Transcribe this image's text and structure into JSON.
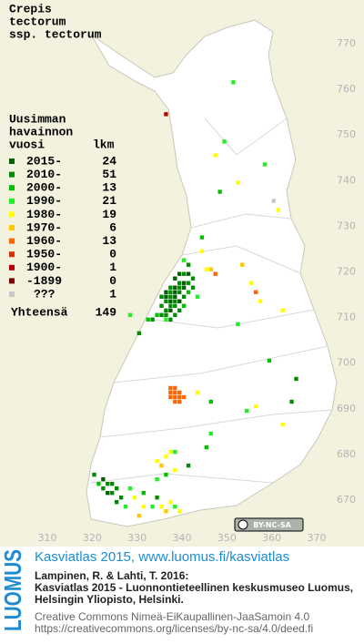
{
  "title_lines": [
    "Crepis",
    "tectorum",
    "ssp. tectorum"
  ],
  "legend": {
    "header": [
      "Uusimman",
      "havainnon"
    ],
    "col_year": "vuosi",
    "col_count": "lkm",
    "rows": [
      {
        "label": "2015-",
        "count": 24,
        "color": "#006000"
      },
      {
        "label": "2010-",
        "count": 51,
        "color": "#008c00"
      },
      {
        "label": "2000-",
        "count": 13,
        "color": "#00c000"
      },
      {
        "label": "1990-",
        "count": 21,
        "color": "#22ee22"
      },
      {
        "label": "1980-",
        "count": 19,
        "color": "#ffff00"
      },
      {
        "label": "1970-",
        "count": 6,
        "color": "#ffc800"
      },
      {
        "label": "1960-",
        "count": 13,
        "color": "#ff6400"
      },
      {
        "label": "1950-",
        "count": 0,
        "color": "#e03000"
      },
      {
        "label": "1900-",
        "count": 1,
        "color": "#b40000"
      },
      {
        "label": "-1899",
        "count": 0,
        "color": "#800000"
      },
      {
        "label": "???",
        "count": 1,
        "color": "#c8c8c8"
      }
    ],
    "total_label": "Yhteensä",
    "total": 149
  },
  "map": {
    "xlim": [
      310,
      370
    ],
    "ylim": [
      670,
      770
    ],
    "xticks": [
      310,
      320,
      330,
      340,
      350,
      360,
      370
    ],
    "yticks": [
      670,
      680,
      690,
      700,
      710,
      720,
      730,
      740,
      750,
      760,
      770
    ],
    "cells": [
      [
        351,
        761,
        3
      ],
      [
        336,
        754,
        8
      ],
      [
        349,
        748,
        3
      ],
      [
        347,
        745,
        4
      ],
      [
        358,
        743,
        3
      ],
      [
        352,
        739,
        4
      ],
      [
        348,
        737,
        2
      ],
      [
        360,
        735,
        10
      ],
      [
        361,
        733,
        4
      ],
      [
        344,
        727,
        2
      ],
      [
        344,
        724,
        4
      ],
      [
        346,
        720,
        5
      ],
      [
        347,
        719,
        6
      ],
      [
        345,
        720,
        4
      ],
      [
        353,
        721,
        5
      ],
      [
        355,
        717,
        4
      ],
      [
        356,
        715,
        6
      ],
      [
        357,
        713,
        4
      ],
      [
        362,
        711,
        4
      ],
      [
        340,
        722,
        3
      ],
      [
        341,
        721,
        1
      ],
      [
        339,
        719,
        0
      ],
      [
        340,
        719,
        1
      ],
      [
        341,
        719,
        0
      ],
      [
        342,
        718,
        1
      ],
      [
        338,
        718,
        0
      ],
      [
        339,
        717,
        1
      ],
      [
        340,
        717,
        0
      ],
      [
        341,
        717,
        1
      ],
      [
        337,
        716,
        1
      ],
      [
        338,
        716,
        0
      ],
      [
        339,
        716,
        1
      ],
      [
        340,
        716,
        0
      ],
      [
        342,
        716,
        1
      ],
      [
        336,
        715,
        0
      ],
      [
        337,
        715,
        1
      ],
      [
        338,
        715,
        0
      ],
      [
        339,
        715,
        1
      ],
      [
        341,
        715,
        2
      ],
      [
        335,
        714,
        1
      ],
      [
        336,
        714,
        0
      ],
      [
        337,
        714,
        1
      ],
      [
        338,
        714,
        0
      ],
      [
        340,
        714,
        1
      ],
      [
        343,
        714,
        3
      ],
      [
        336,
        713,
        1
      ],
      [
        337,
        713,
        0
      ],
      [
        338,
        713,
        1
      ],
      [
        339,
        713,
        0
      ],
      [
        335,
        712,
        1
      ],
      [
        337,
        712,
        1
      ],
      [
        338,
        712,
        1
      ],
      [
        340,
        712,
        2
      ],
      [
        336,
        711,
        1
      ],
      [
        337,
        711,
        0
      ],
      [
        339,
        711,
        1
      ],
      [
        334,
        710,
        2
      ],
      [
        335,
        710,
        1
      ],
      [
        336,
        710,
        1
      ],
      [
        338,
        710,
        1
      ],
      [
        332,
        709,
        2
      ],
      [
        333,
        709,
        1
      ],
      [
        336,
        709,
        3
      ],
      [
        337,
        709,
        1
      ],
      [
        330,
        706,
        1
      ],
      [
        328,
        710,
        3
      ],
      [
        352,
        708,
        3
      ],
      [
        359,
        700,
        2
      ],
      [
        365,
        696,
        1
      ],
      [
        364,
        691,
        1
      ],
      [
        362,
        686,
        4
      ],
      [
        354,
        689,
        3
      ],
      [
        356,
        690,
        4
      ],
      [
        346,
        691,
        2
      ],
      [
        337,
        694,
        6
      ],
      [
        338,
        694,
        6
      ],
      [
        337,
        693,
        6
      ],
      [
        338,
        693,
        6
      ],
      [
        339,
        693,
        6
      ],
      [
        337,
        692,
        6
      ],
      [
        338,
        692,
        6
      ],
      [
        339,
        692,
        6
      ],
      [
        340,
        692,
        6
      ],
      [
        338,
        691,
        6
      ],
      [
        339,
        691,
        6
      ],
      [
        343,
        693,
        4
      ],
      [
        346,
        684,
        3
      ],
      [
        345,
        681,
        2
      ],
      [
        337,
        680,
        4
      ],
      [
        338,
        680,
        3
      ],
      [
        336,
        679,
        4
      ],
      [
        334,
        678,
        4
      ],
      [
        335,
        677,
        5
      ],
      [
        338,
        676,
        4
      ],
      [
        341,
        677,
        1
      ],
      [
        336,
        675,
        2
      ],
      [
        334,
        674,
        3
      ],
      [
        320,
        675,
        1
      ],
      [
        322,
        674,
        0
      ],
      [
        323,
        673,
        1
      ],
      [
        324,
        673,
        1
      ],
      [
        325,
        672,
        1
      ],
      [
        322,
        672,
        1
      ],
      [
        323,
        671,
        0
      ],
      [
        324,
        671,
        1
      ],
      [
        326,
        670,
        1
      ],
      [
        325,
        669,
        1
      ],
      [
        327,
        668,
        3
      ],
      [
        321,
        673,
        2
      ],
      [
        329,
        670,
        4
      ],
      [
        331,
        668,
        4
      ],
      [
        330,
        666,
        5
      ],
      [
        333,
        668,
        3
      ],
      [
        335,
        668,
        4
      ],
      [
        336,
        667,
        5
      ],
      [
        337,
        669,
        4
      ],
      [
        338,
        668,
        3
      ],
      [
        339,
        667,
        4
      ],
      [
        334,
        670,
        1
      ],
      [
        331,
        671,
        2
      ],
      [
        328,
        672,
        3
      ]
    ]
  },
  "badge": "BY-NC-SA",
  "footer": {
    "logo": "LUOMUS",
    "site": "Kasviatlas 2015, www.luomus.fi/kasviatlas",
    "citation": [
      "Lampinen, R. & Lahti, T. 2016:",
      "Kasviatlas 2015 - Luonnontieteellinen keskusmuseo Luomus,",
      "Helsingin Yliopisto, Helsinki."
    ],
    "license": [
      "Creative Commons Nimeä-EiKaupallinen-JaaSamoin 4.0",
      "https://creativecommons.org/licenses/by-nc-sa/4.0/deed.fi"
    ]
  }
}
